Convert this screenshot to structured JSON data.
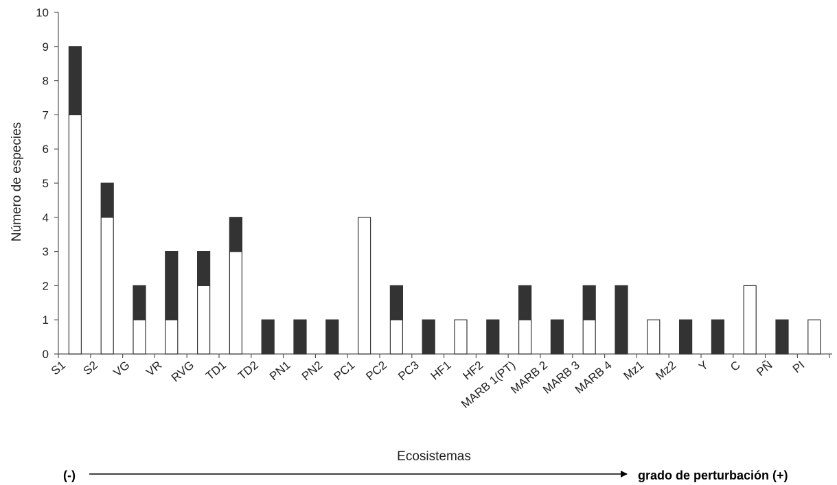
{
  "chart_data": {
    "type": "bar",
    "stacked": true,
    "categories": [
      "S1",
      "S2",
      "VG",
      "VR",
      "RVG",
      "TD1",
      "TD2",
      "PN1",
      "PN2",
      "PC1",
      "PC2",
      "PC3",
      "HF1",
      "HF2",
      "MARB 1(PT)",
      "MARB 2",
      "MARB 3",
      "MARB 4",
      "Mz1",
      "Mz2",
      "Y",
      "C",
      "PÑ",
      "PI"
    ],
    "series": [
      {
        "color": "#ffffff",
        "values": [
          7,
          4,
          1,
          1,
          2,
          3,
          0,
          0,
          0,
          4,
          1,
          0,
          1,
          0,
          1,
          0,
          1,
          0,
          1,
          0,
          0,
          2,
          0,
          1
        ]
      },
      {
        "color": "#333333",
        "values": [
          2,
          1,
          1,
          2,
          1,
          1,
          1,
          1,
          1,
          0,
          1,
          1,
          0,
          1,
          1,
          1,
          1,
          2,
          0,
          1,
          1,
          0,
          1,
          0
        ]
      }
    ],
    "xlabel": "Ecosistemas",
    "ylabel": "Número de especies",
    "ylim": [
      0,
      10
    ],
    "yticks": [
      0,
      1,
      2,
      3,
      4,
      5,
      6,
      7,
      8,
      9,
      10
    ],
    "grid": false
  },
  "disturbance_axis": {
    "left_label": "(-)",
    "right_label": "grado de perturbación (+)"
  }
}
